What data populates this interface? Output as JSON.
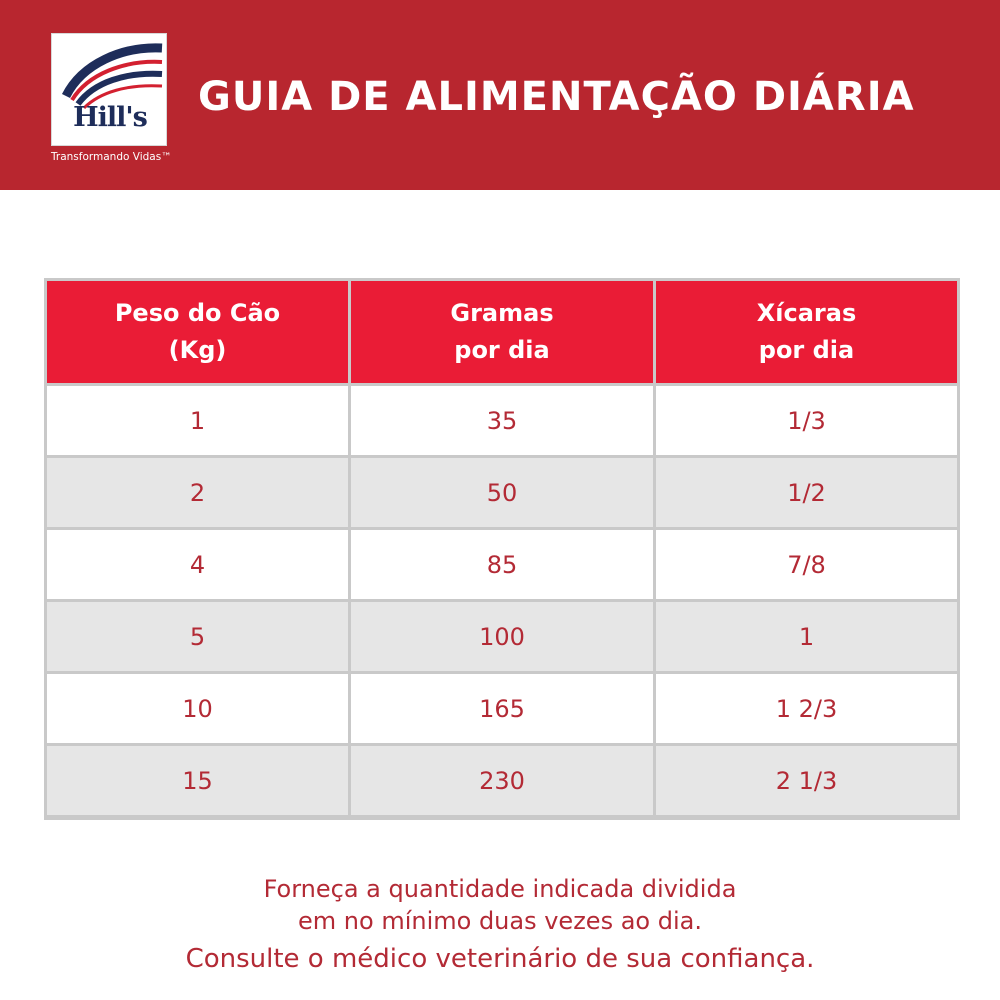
{
  "header": {
    "logo_text": "Hill's",
    "tagline": "Transformando Vidas™",
    "title": "GUIA DE ALIMENTAÇÃO DIÁRIA"
  },
  "colors": {
    "banner": "#b8262f",
    "header_cell": "#ea1c36",
    "text_red": "#b32a35",
    "row_alt": "#e6e6e6"
  },
  "table": {
    "headers": [
      [
        "Peso do Cão",
        "(Kg)"
      ],
      [
        "Gramas",
        "por dia"
      ],
      [
        "Xícaras",
        "por dia"
      ]
    ],
    "rows": [
      [
        "1",
        "35",
        "1/3"
      ],
      [
        "2",
        "50",
        "1/2"
      ],
      [
        "4",
        "85",
        "7/8"
      ],
      [
        "5",
        "100",
        "1"
      ],
      [
        "10",
        "165",
        "1 2/3"
      ],
      [
        "15",
        "230",
        "2 1/3"
      ]
    ]
  },
  "footer": {
    "line1": "Forneça a quantidade indicada dividida",
    "line2": "em no mínimo duas vezes ao dia.",
    "line3": "Consulte o médico veterinário de sua confiança."
  }
}
